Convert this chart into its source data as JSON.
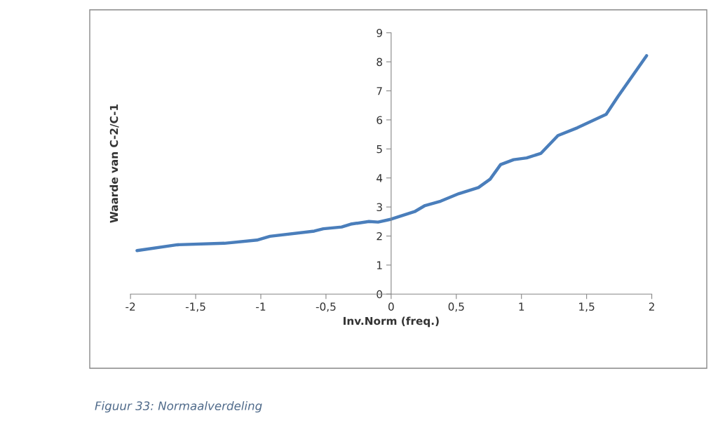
{
  "chart_data": {
    "type": "line",
    "xlabel": "Inv.Norm (freq.)",
    "ylabel": "Waarde van C-2/C-1",
    "annotations": [
      "Figuur 33: Normaalverdeling"
    ],
    "series": [
      {
        "color": "#4a7ebb",
        "x": [
          -1.95,
          -1.64,
          -1.28,
          -1.03,
          -0.93,
          -0.59,
          -0.52,
          -0.38,
          -0.31,
          -0.17,
          -0.1,
          0.0,
          0.18,
          0.26,
          0.38,
          0.52,
          0.67,
          0.76,
          0.84,
          0.94,
          1.04,
          1.15,
          1.28,
          1.43,
          1.65,
          1.74,
          1.96
        ],
        "values": [
          1.5,
          1.7,
          1.75,
          1.86,
          1.99,
          2.17,
          2.25,
          2.31,
          2.41,
          2.5,
          2.48,
          2.58,
          2.84,
          3.05,
          3.2,
          3.46,
          3.67,
          3.96,
          4.46,
          4.63,
          4.69,
          4.85,
          5.46,
          5.73,
          6.19,
          6.8,
          8.21
        ]
      }
    ],
    "xlim": [
      -2,
      2
    ],
    "xticks": [
      {
        "value": -2,
        "label": "-2"
      },
      {
        "value": -1.5,
        "label": "-1,5"
      },
      {
        "value": -1,
        "label": "-1"
      },
      {
        "value": -0.5,
        "label": "-0,5"
      },
      {
        "value": 0,
        "label": "0"
      },
      {
        "value": 0.5,
        "label": "0,5"
      },
      {
        "value": 1,
        "label": "1"
      },
      {
        "value": 1.5,
        "label": "1,5"
      },
      {
        "value": 2,
        "label": "2"
      }
    ],
    "ylim": [
      0,
      9
    ],
    "yticks": [
      0,
      1,
      2,
      3,
      4,
      5,
      6,
      7,
      8,
      9
    ],
    "grid": false,
    "legend": false,
    "marker": "none",
    "line_style": "solid"
  }
}
